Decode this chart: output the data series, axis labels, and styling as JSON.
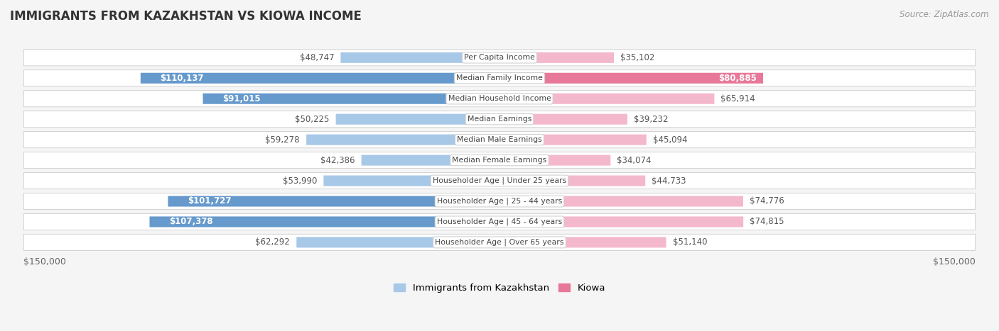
{
  "title": "IMMIGRANTS FROM KAZAKHSTAN VS KIOWA INCOME",
  "source": "Source: ZipAtlas.com",
  "categories": [
    "Per Capita Income",
    "Median Family Income",
    "Median Household Income",
    "Median Earnings",
    "Median Male Earnings",
    "Median Female Earnings",
    "Householder Age | Under 25 years",
    "Householder Age | 25 - 44 years",
    "Householder Age | 45 - 64 years",
    "Householder Age | Over 65 years"
  ],
  "kazakhstan_values": [
    48747,
    110137,
    91015,
    50225,
    59278,
    42386,
    53990,
    101727,
    107378,
    62292
  ],
  "kiowa_values": [
    35102,
    80885,
    65914,
    39232,
    45094,
    34074,
    44733,
    74776,
    74815,
    51140
  ],
  "kazakhstan_labels": [
    "$48,747",
    "$110,137",
    "$91,015",
    "$50,225",
    "$59,278",
    "$42,386",
    "$53,990",
    "$101,727",
    "$107,378",
    "$62,292"
  ],
  "kiowa_labels": [
    "$35,102",
    "$80,885",
    "$65,914",
    "$39,232",
    "$45,094",
    "$34,074",
    "$44,733",
    "$74,776",
    "$74,815",
    "$51,140"
  ],
  "max_value": 150000,
  "kazakhstan_light_color": "#a8c8e8",
  "kazakhstan_dark_color": "#6699cc",
  "kiowa_light_color": "#f4b8cc",
  "kiowa_dark_color": "#e87899",
  "background_color": "#f5f5f5",
  "xlabel_left": "$150,000",
  "xlabel_right": "$150,000",
  "legend_kazakhstan": "Immigrants from Kazakhstan",
  "legend_kiowa": "Kiowa",
  "kaz_dark_threshold": 80000,
  "kiowa_dark_threshold": 75000
}
